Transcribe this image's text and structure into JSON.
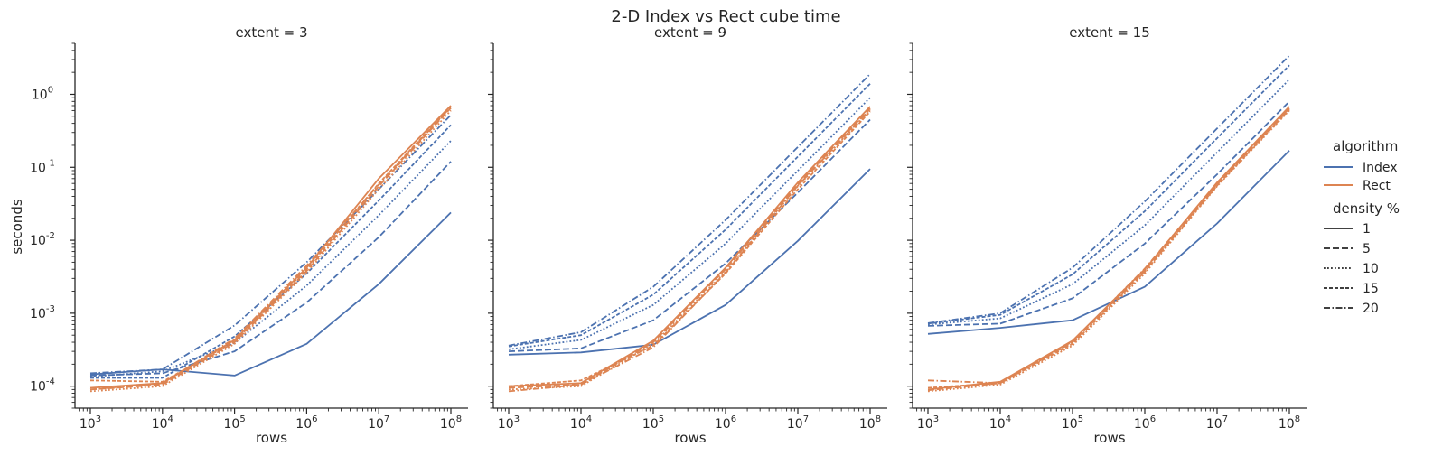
{
  "figure": {
    "title": "2-D Index vs Rect cube time",
    "y_axis_label": "seconds",
    "x_axis_label": "rows"
  },
  "legend": {
    "placement": "right",
    "hue_title": "algorithm",
    "style_title": "density %",
    "hue_entries": [
      {
        "label": "Index",
        "color": "#4c72b0"
      },
      {
        "label": "Rect",
        "color": "#dd8452"
      }
    ],
    "style_entries": [
      {
        "label": "1",
        "dash": "solid"
      },
      {
        "label": "5",
        "dash": "dashed"
      },
      {
        "label": "10",
        "dash": "dotted"
      },
      {
        "label": "15",
        "dash": "dash-short"
      },
      {
        "label": "20",
        "dash": "dash-dot"
      }
    ]
  },
  "chart_data": [
    {
      "type": "line",
      "title": "extent = 3",
      "xlabel": "rows",
      "ylabel": "seconds",
      "xscale": "log",
      "yscale": "log",
      "x": [
        1000,
        10000,
        100000,
        1000000,
        10000000,
        100000000
      ],
      "x_tick_labels": [
        "10^3",
        "10^4",
        "10^5",
        "10^6",
        "10^7",
        "10^8"
      ],
      "y_tick_labels": [
        "10^-4",
        "10^-3",
        "10^-2",
        "10^-1",
        "10^0"
      ],
      "ylim": [
        5e-05,
        5
      ],
      "grid": false,
      "series": [
        {
          "algorithm": "Index",
          "density": "1",
          "values": [
            0.000145,
            0.00017,
            0.00014,
            0.00038,
            0.0025,
            0.024
          ]
        },
        {
          "algorithm": "Index",
          "density": "5",
          "values": [
            0.00014,
            0.00015,
            0.0003,
            0.0014,
            0.011,
            0.12
          ]
        },
        {
          "algorithm": "Index",
          "density": "10",
          "values": [
            0.000135,
            0.00016,
            0.00039,
            0.0024,
            0.022,
            0.23
          ]
        },
        {
          "algorithm": "Index",
          "density": "15",
          "values": [
            0.00013,
            0.00013,
            0.00048,
            0.0035,
            0.035,
            0.38
          ]
        },
        {
          "algorithm": "Index",
          "density": "20",
          "values": [
            0.00015,
            0.00017,
            0.00068,
            0.005,
            0.05,
            0.52
          ]
        },
        {
          "algorithm": "Rect",
          "density": "1",
          "values": [
            9.5e-05,
            0.00011,
            0.00043,
            0.0042,
            0.07,
            0.7
          ]
        },
        {
          "algorithm": "Rect",
          "density": "5",
          "values": [
            9e-05,
            0.000105,
            0.0004,
            0.0038,
            0.055,
            0.65
          ]
        },
        {
          "algorithm": "Rect",
          "density": "10",
          "values": [
            8.5e-05,
            0.0001,
            0.00038,
            0.0036,
            0.05,
            0.6
          ]
        },
        {
          "algorithm": "Rect",
          "density": "15",
          "values": [
            0.00012,
            0.000115,
            0.00041,
            0.004,
            0.06,
            0.68
          ]
        },
        {
          "algorithm": "Rect",
          "density": "20",
          "values": [
            9e-05,
            0.00011,
            0.00045,
            0.0045,
            0.058,
            0.67
          ]
        }
      ]
    },
    {
      "type": "line",
      "title": "extent = 9",
      "xlabel": "rows",
      "ylabel": "",
      "xscale": "log",
      "yscale": "log",
      "x": [
        1000,
        10000,
        100000,
        1000000,
        10000000,
        100000000
      ],
      "x_tick_labels": [
        "10^3",
        "10^4",
        "10^5",
        "10^6",
        "10^7",
        "10^8"
      ],
      "ylim": [
        5e-05,
        5
      ],
      "grid": false,
      "series": [
        {
          "algorithm": "Index",
          "density": "1",
          "values": [
            0.00027,
            0.00029,
            0.00037,
            0.0013,
            0.0098,
            0.095
          ]
        },
        {
          "algorithm": "Index",
          "density": "5",
          "values": [
            0.0003,
            0.00033,
            0.0008,
            0.0048,
            0.045,
            0.45
          ]
        },
        {
          "algorithm": "Index",
          "density": "10",
          "values": [
            0.00032,
            0.00043,
            0.0013,
            0.009,
            0.09,
            0.9
          ]
        },
        {
          "algorithm": "Index",
          "density": "15",
          "values": [
            0.00035,
            0.0005,
            0.0018,
            0.014,
            0.14,
            1.4
          ]
        },
        {
          "algorithm": "Index",
          "density": "20",
          "values": [
            0.00036,
            0.00055,
            0.0023,
            0.019,
            0.19,
            1.9
          ]
        },
        {
          "algorithm": "Rect",
          "density": "1",
          "values": [
            0.0001,
            0.00011,
            0.00042,
            0.0042,
            0.062,
            0.68
          ]
        },
        {
          "algorithm": "Rect",
          "density": "5",
          "values": [
            9.5e-05,
            0.000105,
            0.0004,
            0.004,
            0.058,
            0.64
          ]
        },
        {
          "algorithm": "Rect",
          "density": "10",
          "values": [
            9e-05,
            0.0001,
            0.00038,
            0.0037,
            0.055,
            0.6
          ]
        },
        {
          "algorithm": "Rect",
          "density": "15",
          "values": [
            0.0001,
            0.00012,
            0.00036,
            0.0035,
            0.05,
            0.58
          ]
        },
        {
          "algorithm": "Rect",
          "density": "20",
          "values": [
            8.5e-05,
            0.000105,
            0.00034,
            0.0036,
            0.056,
            0.62
          ]
        }
      ]
    },
    {
      "type": "line",
      "title": "extent = 15",
      "xlabel": "rows",
      "ylabel": "",
      "xscale": "log",
      "yscale": "log",
      "x": [
        1000,
        10000,
        100000,
        1000000,
        10000000,
        100000000
      ],
      "x_tick_labels": [
        "10^3",
        "10^4",
        "10^5",
        "10^6",
        "10^7",
        "10^8"
      ],
      "ylim": [
        5e-05,
        5
      ],
      "grid": false,
      "series": [
        {
          "algorithm": "Index",
          "density": "1",
          "values": [
            0.00052,
            0.00063,
            0.0008,
            0.0023,
            0.017,
            0.17
          ]
        },
        {
          "algorithm": "Index",
          "density": "5",
          "values": [
            0.00067,
            0.00072,
            0.0016,
            0.009,
            0.08,
            0.8
          ]
        },
        {
          "algorithm": "Index",
          "density": "10",
          "values": [
            0.0007,
            0.00085,
            0.0025,
            0.016,
            0.16,
            1.6
          ]
        },
        {
          "algorithm": "Index",
          "density": "15",
          "values": [
            0.00072,
            0.00095,
            0.0034,
            0.025,
            0.25,
            2.5
          ]
        },
        {
          "algorithm": "Index",
          "density": "20",
          "values": [
            0.00073,
            0.001,
            0.0042,
            0.034,
            0.34,
            3.4
          ]
        },
        {
          "algorithm": "Rect",
          "density": "1",
          "values": [
            9e-05,
            0.000115,
            0.00042,
            0.004,
            0.062,
            0.68
          ]
        },
        {
          "algorithm": "Rect",
          "density": "5",
          "values": [
            8.8e-05,
            0.00011,
            0.0004,
            0.0038,
            0.058,
            0.64
          ]
        },
        {
          "algorithm": "Rect",
          "density": "10",
          "values": [
            8.5e-05,
            0.000105,
            0.00036,
            0.0035,
            0.055,
            0.6
          ]
        },
        {
          "algorithm": "Rect",
          "density": "15",
          "values": [
            9.5e-05,
            0.00011,
            0.00038,
            0.0037,
            0.056,
            0.62
          ]
        },
        {
          "algorithm": "Rect",
          "density": "20",
          "values": [
            0.00012,
            0.00011,
            0.00041,
            0.0041,
            0.06,
            0.66
          ]
        }
      ]
    }
  ]
}
